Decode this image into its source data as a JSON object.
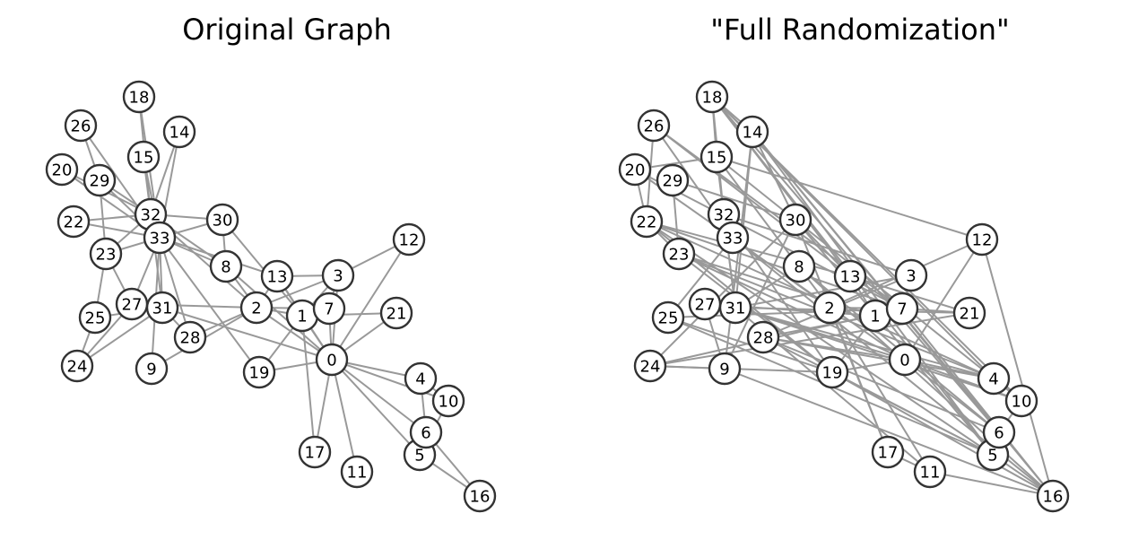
{
  "panels": [
    {
      "id": "original",
      "title": "Original Graph"
    },
    {
      "id": "randomized",
      "title": "\"Full Randomization\""
    }
  ],
  "nodes": [
    "0",
    "1",
    "2",
    "3",
    "4",
    "5",
    "6",
    "7",
    "8",
    "9",
    "10",
    "11",
    "12",
    "13",
    "14",
    "15",
    "16",
    "17",
    "18",
    "19",
    "20",
    "21",
    "22",
    "23",
    "24",
    "25",
    "26",
    "27",
    "28",
    "29",
    "30",
    "31",
    "32",
    "33"
  ],
  "colors": {
    "edge": "#999999",
    "node_stroke": "#333333",
    "node_fill": "#ffffff"
  },
  "original_edges": [
    [
      0,
      1
    ],
    [
      0,
      2
    ],
    [
      0,
      3
    ],
    [
      0,
      4
    ],
    [
      0,
      5
    ],
    [
      0,
      6
    ],
    [
      0,
      7
    ],
    [
      0,
      8
    ],
    [
      0,
      10
    ],
    [
      0,
      11
    ],
    [
      0,
      12
    ],
    [
      0,
      13
    ],
    [
      0,
      17
    ],
    [
      0,
      19
    ],
    [
      0,
      21
    ],
    [
      0,
      31
    ],
    [
      1,
      2
    ],
    [
      1,
      3
    ],
    [
      1,
      7
    ],
    [
      1,
      13
    ],
    [
      1,
      17
    ],
    [
      1,
      19
    ],
    [
      1,
      21
    ],
    [
      1,
      30
    ],
    [
      2,
      3
    ],
    [
      2,
      7
    ],
    [
      2,
      8
    ],
    [
      2,
      9
    ],
    [
      2,
      13
    ],
    [
      2,
      27
    ],
    [
      2,
      28
    ],
    [
      2,
      32
    ],
    [
      3,
      7
    ],
    [
      3,
      12
    ],
    [
      3,
      13
    ],
    [
      4,
      6
    ],
    [
      4,
      10
    ],
    [
      5,
      6
    ],
    [
      5,
      10
    ],
    [
      5,
      16
    ],
    [
      6,
      16
    ],
    [
      8,
      30
    ],
    [
      8,
      32
    ],
    [
      8,
      33
    ],
    [
      9,
      33
    ],
    [
      13,
      33
    ],
    [
      14,
      32
    ],
    [
      14,
      33
    ],
    [
      15,
      32
    ],
    [
      15,
      33
    ],
    [
      18,
      32
    ],
    [
      18,
      33
    ],
    [
      19,
      33
    ],
    [
      20,
      32
    ],
    [
      20,
      33
    ],
    [
      22,
      32
    ],
    [
      22,
      33
    ],
    [
      23,
      25
    ],
    [
      23,
      27
    ],
    [
      23,
      29
    ],
    [
      23,
      32
    ],
    [
      23,
      33
    ],
    [
      24,
      25
    ],
    [
      24,
      27
    ],
    [
      24,
      31
    ],
    [
      25,
      31
    ],
    [
      26,
      29
    ],
    [
      26,
      33
    ],
    [
      27,
      33
    ],
    [
      28,
      31
    ],
    [
      28,
      33
    ],
    [
      29,
      32
    ],
    [
      29,
      33
    ],
    [
      30,
      32
    ],
    [
      30,
      33
    ],
    [
      31,
      32
    ],
    [
      31,
      33
    ],
    [
      32,
      33
    ]
  ],
  "random_edges": [
    [
      18,
      14
    ],
    [
      18,
      15
    ],
    [
      18,
      32
    ],
    [
      18,
      13
    ],
    [
      18,
      4
    ],
    [
      18,
      6
    ],
    [
      18,
      10
    ],
    [
      18,
      5
    ],
    [
      26,
      22
    ],
    [
      26,
      33
    ],
    [
      26,
      13
    ],
    [
      26,
      7
    ],
    [
      14,
      31
    ],
    [
      14,
      30
    ],
    [
      14,
      9
    ],
    [
      14,
      5
    ],
    [
      14,
      6
    ],
    [
      14,
      16
    ],
    [
      15,
      12
    ],
    [
      15,
      20
    ],
    [
      15,
      31
    ],
    [
      15,
      2
    ],
    [
      15,
      4
    ],
    [
      20,
      22
    ],
    [
      20,
      7
    ],
    [
      20,
      0
    ],
    [
      29,
      30
    ],
    [
      29,
      23
    ],
    [
      22,
      23
    ],
    [
      22,
      13
    ],
    [
      22,
      7
    ],
    [
      22,
      4
    ],
    [
      22,
      5
    ],
    [
      22,
      19
    ],
    [
      32,
      31
    ],
    [
      32,
      3
    ],
    [
      32,
      19
    ],
    [
      33,
      25
    ],
    [
      33,
      2
    ],
    [
      33,
      16
    ],
    [
      30,
      24
    ],
    [
      30,
      17
    ],
    [
      30,
      5
    ],
    [
      30,
      13
    ],
    [
      30,
      9
    ],
    [
      23,
      0
    ],
    [
      23,
      4
    ],
    [
      23,
      19
    ],
    [
      23,
      1
    ],
    [
      8,
      31
    ],
    [
      8,
      6
    ],
    [
      8,
      16
    ],
    [
      13,
      7
    ],
    [
      13,
      1
    ],
    [
      13,
      21
    ],
    [
      3,
      31
    ],
    [
      3,
      28
    ],
    [
      12,
      2
    ],
    [
      12,
      16
    ],
    [
      12,
      0
    ],
    [
      27,
      1
    ],
    [
      27,
      9
    ],
    [
      31,
      0
    ],
    [
      31,
      4
    ],
    [
      31,
      11
    ],
    [
      31,
      10
    ],
    [
      31,
      21
    ],
    [
      25,
      7
    ],
    [
      25,
      5
    ],
    [
      25,
      19
    ],
    [
      2,
      7
    ],
    [
      2,
      17
    ],
    [
      2,
      11
    ],
    [
      28,
      0
    ],
    [
      28,
      4
    ],
    [
      28,
      6
    ],
    [
      28,
      1
    ],
    [
      28,
      5
    ],
    [
      24,
      9
    ],
    [
      24,
      19
    ],
    [
      24,
      21
    ],
    [
      24,
      7
    ],
    [
      9,
      16
    ],
    [
      19,
      0
    ],
    [
      19,
      5
    ],
    [
      19,
      1
    ],
    [
      19,
      16
    ],
    [
      0,
      4
    ],
    [
      0,
      10
    ],
    [
      0,
      6
    ],
    [
      7,
      21
    ],
    [
      7,
      16
    ],
    [
      4,
      10
    ],
    [
      17,
      11
    ],
    [
      11,
      16
    ],
    [
      5,
      16
    ],
    [
      6,
      10
    ]
  ]
}
